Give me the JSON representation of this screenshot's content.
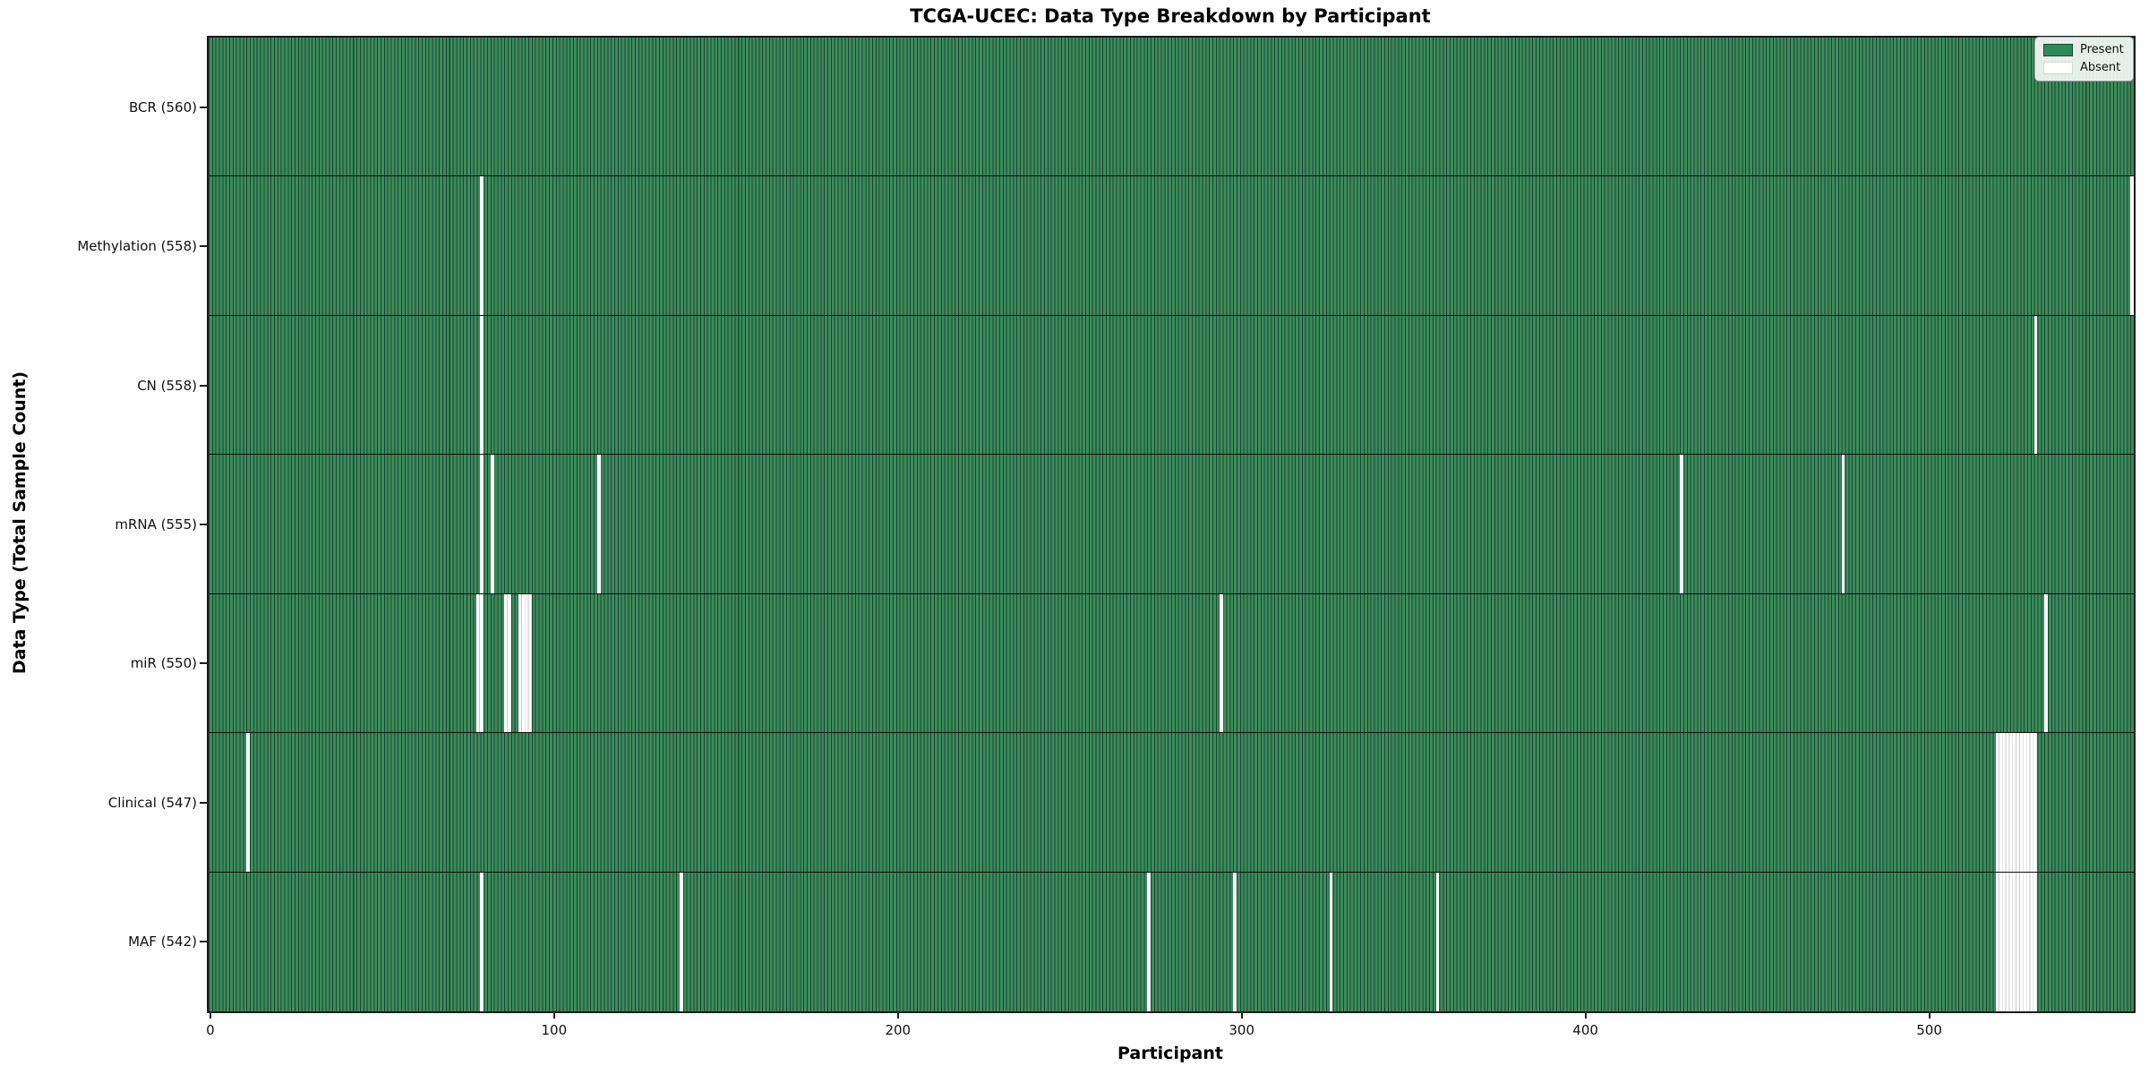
{
  "figure": {
    "title": "TCGA-UCEC: Data Type Breakdown by Participant",
    "xlabel": "Participant",
    "ylabel": "Data Type (Total Sample Count)"
  },
  "legend": {
    "position": "upper right",
    "items": [
      {
        "label": "Present",
        "color": "#2e8b57"
      },
      {
        "label": "Absent",
        "color": "#ffffff"
      }
    ]
  },
  "chart_data": {
    "type": "heatmap",
    "title": "TCGA-UCEC: Data Type Breakdown by Participant",
    "xlabel": "Participant",
    "ylabel": "Data Type (Total Sample Count)",
    "x_ticks": [
      0,
      100,
      200,
      300,
      400,
      500
    ],
    "n_participants": 560,
    "cell_values": {
      "present": 1,
      "absent": 0
    },
    "legend_position": "upper right",
    "grid": false,
    "rows": [
      {
        "data_type": "BCR",
        "label": "BCR (560)",
        "total_samples": 560,
        "absent_participants": []
      },
      {
        "data_type": "Methylation",
        "label": "Methylation (558)",
        "total_samples": 558,
        "absent_participants": [
          79,
          559
        ]
      },
      {
        "data_type": "CN",
        "label": "CN (558)",
        "total_samples": 558,
        "absent_participants": [
          79,
          531
        ]
      },
      {
        "data_type": "mRNA",
        "label": "mRNA (555)",
        "total_samples": 555,
        "absent_participants": [
          79,
          82,
          113,
          428,
          475
        ]
      },
      {
        "data_type": "miR",
        "label": "miR (550)",
        "total_samples": 550,
        "absent_participants": [
          78,
          79,
          86,
          87,
          90,
          91,
          92,
          93,
          294,
          534
        ]
      },
      {
        "data_type": "Clinical",
        "label": "Clinical (547)",
        "total_samples": 547,
        "absent_participants": [
          11,
          520,
          521,
          522,
          523,
          524,
          525,
          526,
          527,
          528,
          529,
          530,
          531
        ]
      },
      {
        "data_type": "MAF",
        "label": "MAF (542)",
        "total_samples": 542,
        "absent_participants": [
          79,
          137,
          273,
          298,
          326,
          357,
          520,
          521,
          522,
          523,
          524,
          525,
          526,
          527,
          528,
          529,
          530,
          531
        ]
      }
    ],
    "colors": {
      "present_fill": "#3b8b5c",
      "present_edge": "#1d4530",
      "legend_present": "#2e8b57",
      "absent_fill": "#ffffff",
      "absent_edge": "#c9c9c9",
      "spine": "#1c1c1c",
      "row_separator": "#101010",
      "tick_text": "#111111"
    }
  }
}
